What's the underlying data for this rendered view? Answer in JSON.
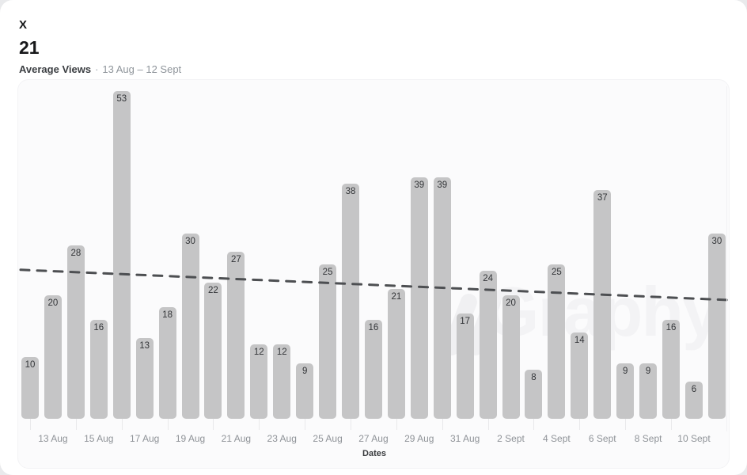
{
  "header": {
    "platform": "X",
    "metric_value": "21",
    "metric_label": "Average Views",
    "separator": "·",
    "date_range": "13 Aug – 12 Sept"
  },
  "watermark": {
    "text": "Graphy"
  },
  "chart_data": {
    "type": "bar",
    "title": "Average Views",
    "subtitle": "13 Aug – 12 Sept",
    "xlabel": "Dates",
    "ylabel": "",
    "ylim": [
      0,
      53
    ],
    "grid": "off",
    "categories": [
      "13 Aug",
      "14 Aug",
      "15 Aug",
      "16 Aug",
      "17 Aug",
      "18 Aug",
      "19 Aug",
      "20 Aug",
      "21 Aug",
      "22 Aug",
      "23 Aug",
      "24 Aug",
      "25 Aug",
      "26 Aug",
      "27 Aug",
      "28 Aug",
      "29 Aug",
      "30 Aug",
      "31 Aug",
      "1 Sept",
      "2 Sept",
      "3 Sept",
      "4 Sept",
      "5 Sept",
      "6 Sept",
      "7 Sept",
      "8 Sept",
      "9 Sept",
      "10 Sept",
      "11 Sept",
      "12 Sept"
    ],
    "values": [
      10,
      20,
      28,
      16,
      53,
      13,
      18,
      30,
      22,
      27,
      12,
      12,
      9,
      25,
      38,
      16,
      21,
      39,
      39,
      17,
      24,
      20,
      8,
      25,
      14,
      37,
      9,
      9,
      16,
      6,
      30
    ],
    "x_tick_labels": [
      "13 Aug",
      "15 Aug",
      "17 Aug",
      "19 Aug",
      "21 Aug",
      "23 Aug",
      "25 Aug",
      "27 Aug",
      "29 Aug",
      "31 Aug",
      "2 Sept",
      "4 Sept",
      "6 Sept",
      "8 Sept",
      "10 Sept"
    ],
    "average": 21,
    "trendline": {
      "style": "dashed",
      "start_value": 24.1,
      "end_value": 19.2
    },
    "bar_color": "#c5c5c6",
    "value_label_color": "#333538",
    "trendline_color": "#4d4f52"
  }
}
